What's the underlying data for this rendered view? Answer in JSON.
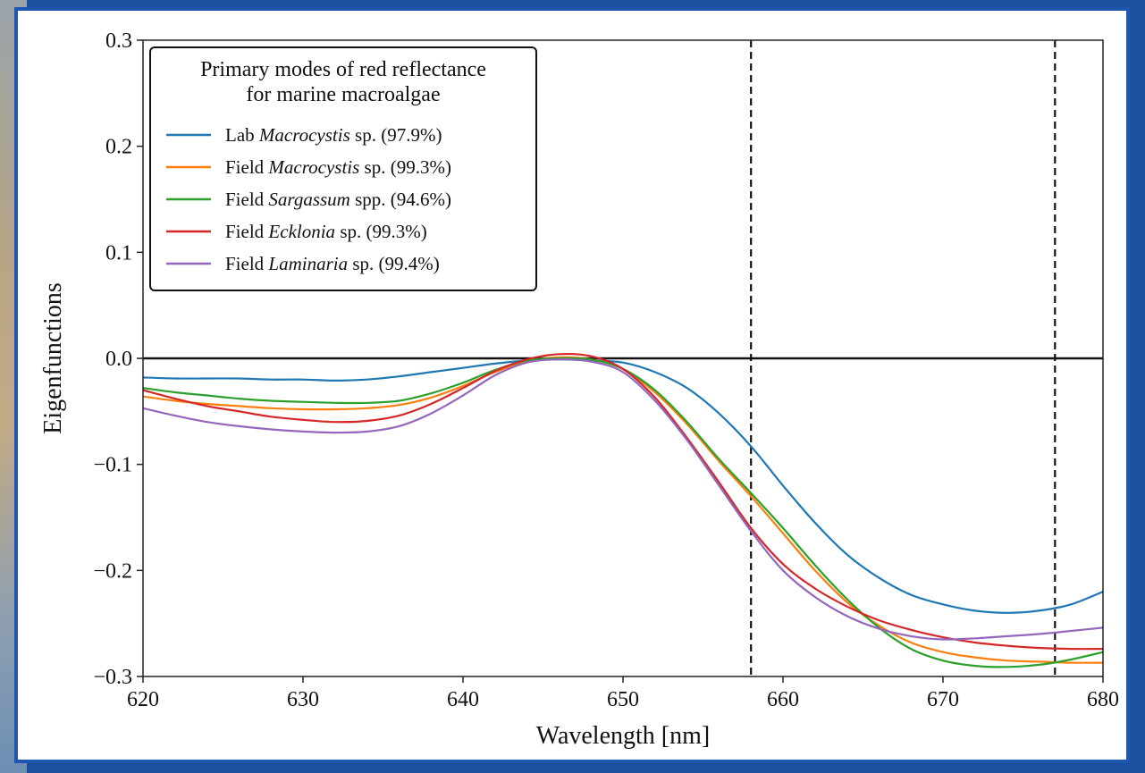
{
  "chart_data": {
    "type": "line",
    "xlabel": "Wavelength [nm]",
    "ylabel": "Eigenfunctions",
    "xlim": [
      620,
      680
    ],
    "ylim": [
      -0.3,
      0.3
    ],
    "x_ticks": [
      620,
      630,
      640,
      650,
      660,
      670,
      680
    ],
    "x_tick_labels": [
      "620",
      "630",
      "640",
      "650",
      "660",
      "670",
      "680"
    ],
    "y_ticks": [
      -0.3,
      -0.2,
      -0.1,
      0.0,
      0.1,
      0.2,
      0.3
    ],
    "y_tick_labels": [
      "−0.3",
      "−0.2",
      "−0.1",
      "0.0",
      "0.1",
      "0.2",
      "0.3"
    ],
    "hline": 0.0,
    "vlines": [
      658,
      677
    ],
    "grid": false,
    "legend": {
      "title_lines": [
        "Primary modes of red reflectance",
        "for marine macroalgae"
      ],
      "placement": "top-left",
      "entries": [
        {
          "prefix": "Lab",
          "genus": "Macrocystis",
          "suffix": "sp. (97.9%)"
        },
        {
          "prefix": "Field",
          "genus": "Macrocystis",
          "suffix": "sp. (99.3%)"
        },
        {
          "prefix": "Field",
          "genus": "Sargassum",
          "suffix": "spp. (94.6%)"
        },
        {
          "prefix": "Field",
          "genus": "Ecklonia",
          "suffix": "sp. (99.3%)"
        },
        {
          "prefix": "Field",
          "genus": "Laminaria",
          "suffix": "sp. (99.4%)"
        }
      ]
    },
    "x": [
      620,
      622,
      624,
      626,
      628,
      630,
      632,
      634,
      636,
      638,
      640,
      642,
      644,
      646,
      648,
      650,
      652,
      654,
      656,
      658,
      660,
      662,
      664,
      666,
      668,
      670,
      672,
      674,
      676,
      678,
      680
    ],
    "series": [
      {
        "color": "#1f77b4",
        "values": [
          -0.018,
          -0.019,
          -0.019,
          -0.019,
          -0.02,
          -0.02,
          -0.021,
          -0.02,
          -0.017,
          -0.013,
          -0.009,
          -0.005,
          -0.002,
          -0.001,
          -0.002,
          -0.004,
          -0.013,
          -0.028,
          -0.052,
          -0.083,
          -0.12,
          -0.155,
          -0.185,
          -0.207,
          -0.223,
          -0.232,
          -0.238,
          -0.24,
          -0.238,
          -0.232,
          -0.22
        ]
      },
      {
        "color": "#ff7f0e",
        "values": [
          -0.036,
          -0.04,
          -0.043,
          -0.045,
          -0.047,
          -0.048,
          -0.048,
          -0.047,
          -0.044,
          -0.037,
          -0.026,
          -0.013,
          -0.003,
          0.001,
          -0.001,
          -0.01,
          -0.032,
          -0.062,
          -0.097,
          -0.13,
          -0.165,
          -0.2,
          -0.23,
          -0.252,
          -0.268,
          -0.277,
          -0.282,
          -0.285,
          -0.286,
          -0.287,
          -0.287
        ]
      },
      {
        "color": "#2ca02c",
        "values": [
          -0.028,
          -0.032,
          -0.035,
          -0.038,
          -0.04,
          -0.041,
          -0.042,
          -0.042,
          -0.04,
          -0.033,
          -0.023,
          -0.011,
          -0.002,
          0.0,
          -0.001,
          -0.01,
          -0.03,
          -0.06,
          -0.095,
          -0.127,
          -0.16,
          -0.195,
          -0.227,
          -0.254,
          -0.274,
          -0.285,
          -0.29,
          -0.291,
          -0.289,
          -0.284,
          -0.277
        ]
      },
      {
        "color": "#d62728",
        "values": [
          -0.03,
          -0.038,
          -0.045,
          -0.05,
          -0.055,
          -0.058,
          -0.06,
          -0.059,
          -0.054,
          -0.043,
          -0.028,
          -0.012,
          -0.001,
          0.004,
          0.002,
          -0.01,
          -0.037,
          -0.075,
          -0.117,
          -0.16,
          -0.194,
          -0.217,
          -0.234,
          -0.247,
          -0.256,
          -0.263,
          -0.268,
          -0.271,
          -0.273,
          -0.274,
          -0.274
        ]
      },
      {
        "color": "#9467bd",
        "values": [
          -0.047,
          -0.054,
          -0.06,
          -0.064,
          -0.067,
          -0.069,
          -0.07,
          -0.069,
          -0.064,
          -0.052,
          -0.035,
          -0.016,
          -0.004,
          -0.001,
          -0.003,
          -0.013,
          -0.04,
          -0.077,
          -0.12,
          -0.163,
          -0.2,
          -0.225,
          -0.243,
          -0.255,
          -0.262,
          -0.265,
          -0.264,
          -0.262,
          -0.26,
          -0.257,
          -0.254
        ]
      }
    ]
  }
}
